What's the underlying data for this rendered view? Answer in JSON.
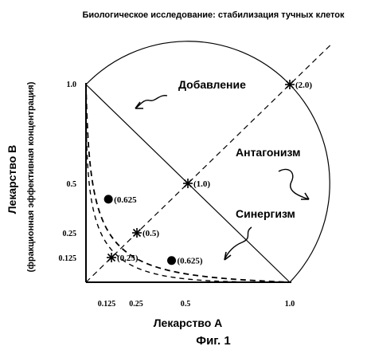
{
  "chart_data": {
    "type": "scatter",
    "title": "Биологическое исследование: стабилизация тучных клеток",
    "xlabel": "Лекарство А",
    "ylabel": "Лекарство В",
    "ylabel_sub": "(фракционная эффективная концентрация)",
    "caption": "Фиг. 1",
    "xlim": [
      0,
      1.0
    ],
    "ylim": [
      0,
      1.0
    ],
    "x_ticks": [
      "0.125",
      "0.25",
      "0.5",
      "1.0"
    ],
    "y_ticks": [
      "0.125",
      "0.25",
      "0.5",
      "1.0"
    ],
    "regions": {
      "additive": "Добавление",
      "antagonism": "Антагонизм",
      "synergy": "Синергизм"
    },
    "points": [
      {
        "x": 1.0,
        "y": 1.0,
        "label": "(2.0)",
        "marker": "star"
      },
      {
        "x": 0.5,
        "y": 0.5,
        "label": "(1.0)",
        "marker": "star"
      },
      {
        "x": 0.25,
        "y": 0.25,
        "label": "(0.5)",
        "marker": "star"
      },
      {
        "x": 0.125,
        "y": 0.125,
        "label": "(0.25)",
        "marker": "star"
      },
      {
        "x": 0.11,
        "y": 0.42,
        "label": "(0.625",
        "marker": "dot"
      },
      {
        "x": 0.42,
        "y": 0.11,
        "label": "(0.625)",
        "marker": "dot"
      }
    ],
    "grid": false,
    "legend": "none"
  }
}
